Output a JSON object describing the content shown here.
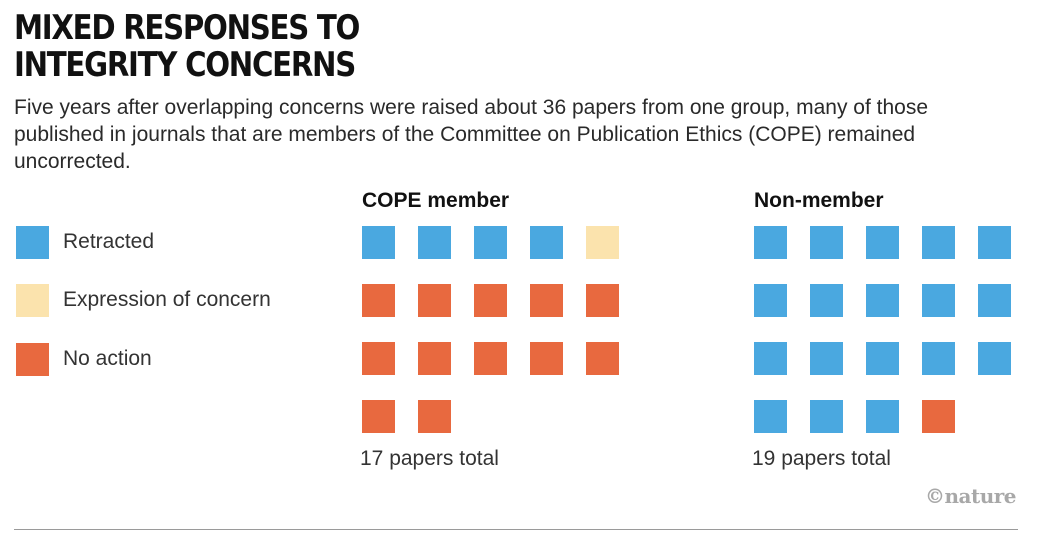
{
  "title": "MIXED RESPONSES TO INTEGRITY CONCERNS",
  "subtitle": "Five years after overlapping concerns were raised about 36 papers from one group, many of those published in journals that are members of the Committee on Publication Ethics (COPE) remained uncorrected.",
  "credit": "©nature",
  "colors": {
    "retracted": "#4aa8e0",
    "expression_of_concern": "#fbe3ad",
    "no_action": "#e8693f"
  },
  "legend": [
    {
      "key": "retracted",
      "label": "Retracted"
    },
    {
      "key": "expression_of_concern",
      "label": "Expression of concern"
    },
    {
      "key": "no_action",
      "label": "No action"
    }
  ],
  "chart_data": {
    "type": "waffle",
    "title": "MIXED RESPONSES TO INTEGRITY CONCERNS",
    "units_per_row": 5,
    "categories": [
      "Retracted",
      "Expression of concern",
      "No action"
    ],
    "groups": [
      {
        "name": "COPE member",
        "total_label": "17 papers total",
        "total": 17,
        "counts": {
          "retracted": 4,
          "expression_of_concern": 1,
          "no_action": 12
        }
      },
      {
        "name": "Non-member",
        "total_label": "19 papers total",
        "total": 19,
        "counts": {
          "retracted": 18,
          "expression_of_concern": 0,
          "no_action": 1
        }
      }
    ]
  }
}
